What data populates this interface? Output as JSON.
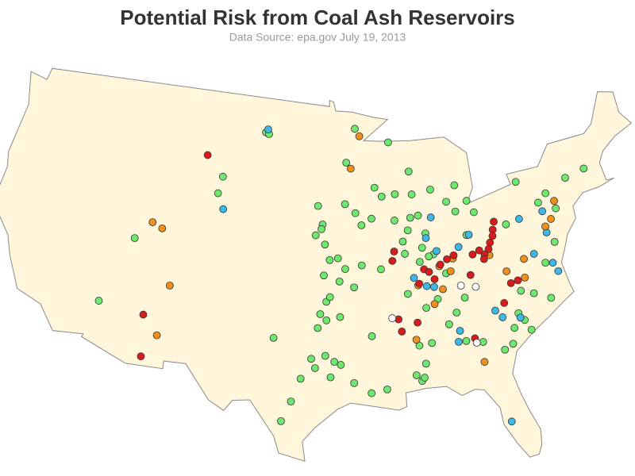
{
  "map": {
    "title": "Potential Risk from Coal Ash Reservoirs",
    "subtitle": "Data Source: epa.gov   July 19, 2013",
    "groups": [
      {
        "color": "#6fe86f",
        "points": [
          [
            -101.3,
            47.2
          ],
          [
            -101.0,
            47.1
          ],
          [
            -92.8,
            47.5
          ],
          [
            -93.7,
            45.3
          ],
          [
            -89.7,
            46.5
          ],
          [
            -88.0,
            44.5
          ],
          [
            -89.4,
            43.1
          ],
          [
            -87.9,
            43.0
          ],
          [
            -91.2,
            43.6
          ],
          [
            -90.6,
            43.0
          ],
          [
            -86.2,
            43.2
          ],
          [
            -84.0,
            43.3
          ],
          [
            -84.9,
            42.3
          ],
          [
            -83.1,
            42.2
          ],
          [
            -93.0,
            42.0
          ],
          [
            -91.6,
            41.6
          ],
          [
            -92.5,
            41.2
          ],
          [
            -95.9,
            41.3
          ],
          [
            -96.3,
            42.5
          ],
          [
            -93.9,
            42.6
          ],
          [
            -96.0,
            41.0
          ],
          [
            -96.5,
            40.6
          ],
          [
            -95.7,
            40.0
          ],
          [
            -95.3,
            39.0
          ],
          [
            -94.6,
            39.1
          ],
          [
            -94.0,
            38.4
          ],
          [
            -95.8,
            38.0
          ],
          [
            -93.3,
            37.2
          ],
          [
            -94.5,
            37.6
          ],
          [
            -92.6,
            38.6
          ],
          [
            -91.0,
            38.3
          ],
          [
            -89.6,
            41.4
          ],
          [
            -88.2,
            41.5
          ],
          [
            -89.0,
            40.0
          ],
          [
            -88.5,
            40.7
          ],
          [
            -87.5,
            41.6
          ],
          [
            -87.0,
            40.4
          ],
          [
            -87.4,
            39.5
          ],
          [
            -86.5,
            39.0
          ],
          [
            -87.7,
            38.6
          ],
          [
            -86.9,
            38.9
          ],
          [
            -88.9,
            39.2
          ],
          [
            -84.2,
            41.6
          ],
          [
            -82.6,
            41.4
          ],
          [
            -83.5,
            40.0
          ],
          [
            -80.0,
            40.3
          ],
          [
            -76.9,
            41.3
          ],
          [
            -78.5,
            42.9
          ],
          [
            -74.1,
            42.5
          ],
          [
            -75.5,
            40.7
          ],
          [
            -76.1,
            41.8
          ],
          [
            -85.6,
            37.7
          ],
          [
            -88.9,
            36.6
          ],
          [
            -85.1,
            35.1
          ],
          [
            -86.5,
            36.1
          ],
          [
            -84.3,
            36.0
          ],
          [
            -87.5,
            35.6
          ],
          [
            -88.3,
            33.2
          ],
          [
            -87.3,
            33.3
          ],
          [
            -87.9,
            32.0
          ],
          [
            -88.3,
            30.9
          ],
          [
            -88.1,
            31.1
          ],
          [
            -85.8,
            34.4
          ],
          [
            -84.6,
            33.2
          ],
          [
            -83.3,
            33.0
          ],
          [
            -81.7,
            32.3
          ],
          [
            -88.7,
            31.3
          ],
          [
            -80.2,
            34.5
          ],
          [
            -79.8,
            34.0
          ],
          [
            -80.7,
            33.6
          ],
          [
            -79.4,
            33.3
          ],
          [
            -81.0,
            32.6
          ],
          [
            -77.3,
            37.4
          ],
          [
            -76.2,
            38.6
          ],
          [
            -77.4,
            35.1
          ],
          [
            -78.7,
            35.6
          ],
          [
            -79.7,
            35.9
          ],
          [
            -95.6,
            36.3
          ],
          [
            -95.3,
            36.6
          ],
          [
            -96.1,
            35.5
          ],
          [
            -96.3,
            34.6
          ],
          [
            -95.6,
            35.1
          ],
          [
            -99.8,
            33.9
          ],
          [
            -96.8,
            32.6
          ],
          [
            -96.5,
            32.0
          ],
          [
            -95.0,
            32.4
          ],
          [
            -94.5,
            32.2
          ],
          [
            -95.3,
            31.4
          ],
          [
            -97.6,
            31.3
          ],
          [
            -98.3,
            29.8
          ],
          [
            -99.0,
            28.5
          ],
          [
            -93.5,
            31.0
          ],
          [
            -92.2,
            30.3
          ],
          [
            -91.0,
            30.5
          ],
          [
            -92.0,
            34.0
          ],
          [
            -94.5,
            35.3
          ],
          [
            -95.7,
            32.8
          ],
          [
            -112.0,
            39.4
          ],
          [
            -114.0,
            35.0
          ],
          [
            -105.0,
            44.1
          ],
          [
            -105.3,
            43.0
          ],
          [
            -72.3,
            42.8
          ]
        ]
      },
      {
        "color": "#3fb8e8",
        "points": [
          [
            -101.1,
            47.4
          ],
          [
            -104.7,
            42.0
          ],
          [
            -86.4,
            41.4
          ],
          [
            -83.3,
            40.0
          ],
          [
            -87.0,
            40.1
          ],
          [
            -86.2,
            39.2
          ],
          [
            -88.3,
            37.6
          ],
          [
            -87.3,
            37.0
          ],
          [
            -86.7,
            36.9
          ],
          [
            -78.8,
            40.5
          ],
          [
            -76.7,
            40.7
          ],
          [
            -76.7,
            39.3
          ],
          [
            -78.1,
            38.1
          ],
          [
            -76.7,
            37.3
          ],
          [
            -76.4,
            36.7
          ],
          [
            -82.0,
            34.9
          ],
          [
            -81.5,
            34.4
          ],
          [
            -80.1,
            34.2
          ],
          [
            -85.2,
            33.2
          ],
          [
            -85.0,
            33.9
          ],
          [
            -82.0,
            27.6
          ],
          [
            -84.3,
            39.3
          ]
        ]
      },
      {
        "color": "#f0901a",
        "points": [
          [
            -92.4,
            47.0
          ],
          [
            -93.3,
            44.9
          ],
          [
            -110.7,
            40.6
          ],
          [
            -109.8,
            40.3
          ],
          [
            -108.5,
            36.7
          ],
          [
            -109.0,
            33.4
          ],
          [
            -84.9,
            38.6
          ],
          [
            -86.1,
            38.2
          ],
          [
            -85.2,
            37.8
          ],
          [
            -88.0,
            37.1
          ],
          [
            -86.0,
            36.7
          ],
          [
            -86.8,
            35.8
          ],
          [
            -88.5,
            33.6
          ],
          [
            -83.4,
            31.7
          ],
          [
            -80.6,
            37.3
          ],
          [
            -76.7,
            39.7
          ],
          [
            -75.5,
            41.2
          ],
          [
            -76.1,
            40.1
          ],
          [
            -81.8,
            38.5
          ],
          [
            -79.2,
            36.7
          ],
          [
            -79.0,
            37.9
          ]
        ]
      },
      {
        "color": "#d81c1c",
        "points": [
          [
            -106.6,
            45.4
          ],
          [
            -110.3,
            34.6
          ],
          [
            -110.0,
            31.9
          ],
          [
            -81.0,
            40.6
          ],
          [
            -81.2,
            40.1
          ],
          [
            -81.3,
            39.7
          ],
          [
            -81.6,
            39.3
          ],
          [
            -81.8,
            38.9
          ],
          [
            -82.2,
            38.6
          ],
          [
            -82.6,
            38.9
          ],
          [
            -83.2,
            38.7
          ],
          [
            -84.8,
            38.8
          ],
          [
            -85.4,
            38.6
          ],
          [
            -86.0,
            38.3
          ],
          [
            -87.4,
            38.1
          ],
          [
            -87.0,
            37.9
          ],
          [
            -86.6,
            37.4
          ],
          [
            -87.9,
            37.2
          ],
          [
            -89.8,
            39.4
          ],
          [
            -90.0,
            38.8
          ],
          [
            -89.8,
            35.0
          ],
          [
            -89.6,
            34.2
          ],
          [
            -88.3,
            34.7
          ],
          [
            -83.9,
            33.3
          ],
          [
            -81.2,
            35.3
          ],
          [
            -80.4,
            36.5
          ],
          [
            -79.8,
            36.6
          ],
          [
            -83.6,
            37.4
          ],
          [
            -82.3,
            38.3
          ]
        ]
      },
      {
        "color": "#ffffff",
        "points": [
          [
            -90.3,
            35.1
          ],
          [
            -84.5,
            36.8
          ],
          [
            -83.3,
            36.6
          ],
          [
            -83.8,
            33.0
          ]
        ]
      }
    ]
  }
}
